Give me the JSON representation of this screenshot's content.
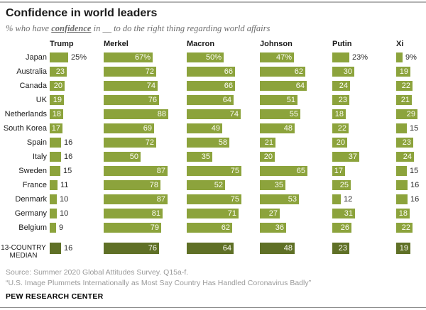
{
  "title": "Confidence in world leaders",
  "subtitle": {
    "prefix": "% who have ",
    "emphasis": "confidence",
    "middle": " in ",
    "blank": "__",
    "suffix": " to do the right thing regarding world affairs"
  },
  "chart_data": {
    "type": "bar",
    "unit": "%",
    "title": "Confidence in world leaders",
    "categories": [
      "Japan",
      "Australia",
      "Canada",
      "UK",
      "Netherlands",
      "South Korea",
      "Spain",
      "Italy",
      "Sweden",
      "France",
      "Denmark",
      "Germany",
      "Belgium"
    ],
    "median_label_lines": [
      "13-COUNTRY",
      "MEDIAN"
    ],
    "median_label": "13-COUNTRY MEDIAN",
    "percent_suffix_row": 0,
    "series": [
      {
        "name": "Trump",
        "values": [
          25,
          23,
          20,
          19,
          18,
          17,
          16,
          16,
          15,
          11,
          10,
          10,
          9
        ],
        "outside": [
          true,
          false,
          false,
          false,
          false,
          false,
          true,
          true,
          true,
          true,
          true,
          true,
          true
        ],
        "median": 16,
        "median_outside": true
      },
      {
        "name": "Merkel",
        "values": [
          67,
          72,
          74,
          76,
          88,
          69,
          72,
          50,
          87,
          78,
          87,
          81,
          79
        ],
        "outside": [
          false,
          false,
          false,
          false,
          false,
          false,
          false,
          false,
          false,
          false,
          false,
          false,
          false
        ],
        "median": 76,
        "median_outside": false
      },
      {
        "name": "Macron",
        "values": [
          50,
          66,
          66,
          64,
          74,
          49,
          58,
          35,
          75,
          52,
          75,
          71,
          62
        ],
        "outside": [
          false,
          false,
          false,
          false,
          false,
          false,
          false,
          false,
          false,
          false,
          false,
          false,
          false
        ],
        "median": 64,
        "median_outside": false
      },
      {
        "name": "Johnson",
        "values": [
          47,
          62,
          64,
          51,
          55,
          48,
          21,
          20,
          65,
          35,
          53,
          27,
          36
        ],
        "outside": [
          false,
          false,
          false,
          false,
          false,
          false,
          false,
          false,
          false,
          false,
          false,
          false,
          false
        ],
        "median": 48,
        "median_outside": false
      },
      {
        "name": "Putin",
        "values": [
          23,
          30,
          24,
          23,
          18,
          22,
          20,
          37,
          17,
          25,
          12,
          31,
          26
        ],
        "outside": [
          true,
          false,
          false,
          false,
          false,
          false,
          false,
          false,
          false,
          false,
          true,
          false,
          false
        ],
        "median": 23,
        "median_outside": false
      },
      {
        "name": "Xi",
        "values": [
          9,
          19,
          22,
          21,
          29,
          15,
          23,
          24,
          15,
          16,
          16,
          18,
          22
        ],
        "outside": [
          true,
          false,
          false,
          false,
          false,
          true,
          false,
          false,
          true,
          true,
          true,
          false,
          false
        ],
        "median": 19,
        "median_outside": false
      }
    ],
    "colors": {
      "bar": "#8ca33c",
      "median_bar": "#5f7026",
      "label_inside": "#fdfdf6",
      "label_outside": "#2b2b2b"
    }
  },
  "footer": {
    "source": "Source: Summer 2020 Global Attitudes Survey. Q15a-f.",
    "note": "“U.S. Image Plummets Internationally as Most Say Country Has Handled Coronavirus Badly”",
    "brand": "PEW RESEARCH CENTER"
  }
}
